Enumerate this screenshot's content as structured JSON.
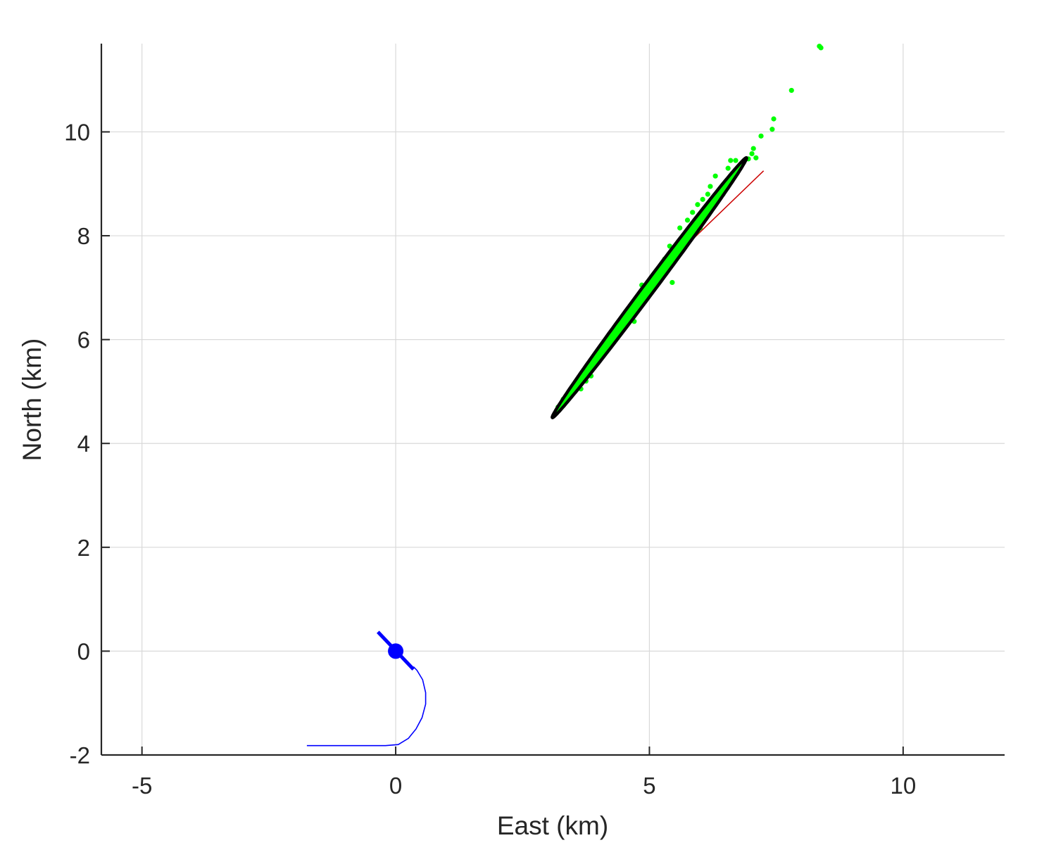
{
  "chart_data": {
    "type": "scatter",
    "title": "",
    "xlabel": "East (km)",
    "ylabel": "North (km)",
    "xlim": [
      -5.8,
      12.0
    ],
    "ylim": [
      -2,
      11.7
    ],
    "xticks": [
      -5,
      0,
      5,
      10
    ],
    "xtick_labels": [
      "-5",
      "0",
      "5",
      "10"
    ],
    "yticks": [
      -2,
      0,
      2,
      4,
      6,
      8,
      10
    ],
    "ytick_labels": [
      "-2",
      "0",
      "2",
      "4",
      "6",
      "8",
      "10"
    ],
    "grid": true,
    "legend": "none",
    "colors": {
      "grid": "#d9d9d9",
      "axis": "#262626",
      "samples": "#00ff00",
      "ellipse": "#000000",
      "bearing": "#cc0000",
      "track": "#0000ff",
      "observer": "#0000ff"
    },
    "series": [
      {
        "kind": "track",
        "points": [
          [
            -1.75,
            -1.82
          ],
          [
            -0.2,
            -1.82
          ],
          [
            0.05,
            -1.8
          ],
          [
            0.25,
            -1.68
          ],
          [
            0.4,
            -1.5
          ],
          [
            0.52,
            -1.28
          ],
          [
            0.59,
            -1.02
          ],
          [
            0.59,
            -0.8
          ],
          [
            0.53,
            -0.55
          ],
          [
            0.42,
            -0.37
          ],
          [
            0.35,
            -0.3
          ]
        ]
      },
      {
        "kind": "heading",
        "from": [
          -0.35,
          0.37
        ],
        "to": [
          0.35,
          -0.35
        ]
      },
      {
        "kind": "observer",
        "point": [
          0,
          0
        ]
      },
      {
        "kind": "bearing-line",
        "from": [
          5.5,
          7.6
        ],
        "to": [
          7.25,
          9.25
        ]
      },
      {
        "kind": "samples",
        "center": [
          5.0,
          7.0
        ],
        "points": [
          [
            8.35,
            11.65
          ],
          [
            8.38,
            11.62
          ],
          [
            7.8,
            10.8
          ],
          [
            7.45,
            10.25
          ],
          [
            7.42,
            10.05
          ],
          [
            7.2,
            9.92
          ],
          [
            7.05,
            9.68
          ],
          [
            7.02,
            9.58
          ],
          [
            6.95,
            9.48
          ],
          [
            7.1,
            9.5
          ],
          [
            6.7,
            9.45
          ],
          [
            6.6,
            9.45
          ],
          [
            6.55,
            9.3
          ],
          [
            6.3,
            9.15
          ],
          [
            6.2,
            8.95
          ],
          [
            6.15,
            8.8
          ],
          [
            6.05,
            8.7
          ],
          [
            5.95,
            8.6
          ],
          [
            5.85,
            8.45
          ],
          [
            5.75,
            8.3
          ],
          [
            6.0,
            8.15
          ],
          [
            5.95,
            8.1
          ],
          [
            5.6,
            8.15
          ],
          [
            5.4,
            7.8
          ],
          [
            5.3,
            7.55
          ],
          [
            5.2,
            7.3
          ],
          [
            5.45,
            7.1
          ],
          [
            4.85,
            7.05
          ],
          [
            4.75,
            6.75
          ],
          [
            4.6,
            6.6
          ],
          [
            4.5,
            6.4
          ],
          [
            4.35,
            6.1
          ],
          [
            4.2,
            5.95
          ],
          [
            4.05,
            5.75
          ],
          [
            3.95,
            5.6
          ],
          [
            3.85,
            5.4
          ],
          [
            3.75,
            5.2
          ],
          [
            3.65,
            5.05
          ],
          [
            3.45,
            4.95
          ],
          [
            3.3,
            4.85
          ],
          [
            3.3,
            4.75
          ],
          [
            3.2,
            4.7
          ],
          [
            6.45,
            8.8
          ],
          [
            4.7,
            6.35
          ],
          [
            3.85,
            5.3
          ]
        ]
      },
      {
        "kind": "ellipse",
        "center": [
          5.0,
          7.0
        ],
        "semi_major_km": 3.15,
        "semi_minor_km": 0.11,
        "angle_deg": 52.6
      }
    ]
  }
}
